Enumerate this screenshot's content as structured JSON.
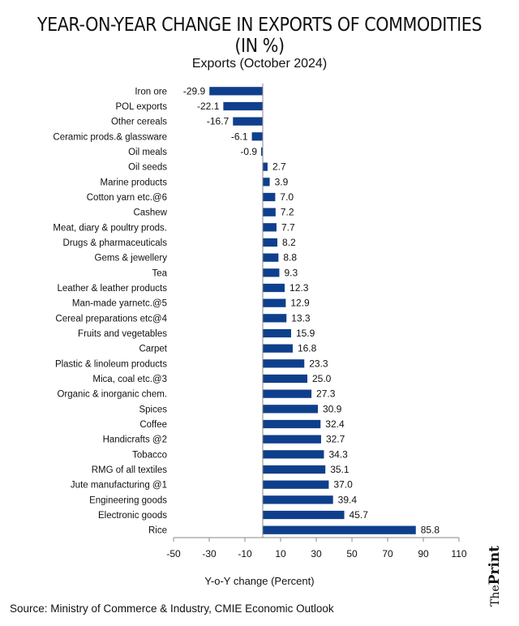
{
  "headline": "YEAR-ON-YEAR CHANGE IN EXPORTS OF COMMODITIES (IN %)",
  "source": "Source: Ministry of Commerce & Industry, CMIE Economic Outlook",
  "brand": {
    "the": "The",
    "name": "Print"
  },
  "colors": {
    "bar": "#0f3f8c",
    "axis": "#888888"
  },
  "chart_data": {
    "type": "bar",
    "orientation": "horizontal",
    "title": "Exports (October 2024)",
    "xlabel": "Y-o-Y change (Percent)",
    "ylabel": "",
    "xlim": [
      -50,
      110
    ],
    "xticks": [
      -50,
      -30,
      -10,
      10,
      30,
      50,
      70,
      90,
      110
    ],
    "grid": false,
    "categories": [
      "Iron ore",
      "POL exports",
      "Other cereals",
      "Ceramic prods.& glassware",
      "Oil meals",
      "Oil seeds",
      "Marine products",
      "Cotton yarn etc.@6",
      "Cashew",
      "Meat, diary & poultry prods.",
      "Drugs & pharmaceuticals",
      "Gems & jewellery",
      "Tea",
      "Leather & leather products",
      "Man-made yarnetc.@5",
      "Cereal preparations etc@4",
      "Fruits and vegetables",
      "Carpet",
      "Plastic & linoleum products",
      "Mica, coal etc.@3",
      "Organic & inorganic chem.",
      "Spices",
      "Coffee",
      "Handicrafts @2",
      "Tobacco",
      "RMG of all textiles",
      "Jute manufacturing @1",
      "Engineering goods",
      "Electronic goods",
      "Rice"
    ],
    "values": [
      -29.9,
      -22.1,
      -16.7,
      -6.1,
      -0.9,
      2.7,
      3.9,
      7.0,
      7.2,
      7.7,
      8.2,
      8.8,
      9.3,
      12.3,
      12.9,
      13.3,
      15.9,
      16.8,
      23.3,
      25.0,
      27.3,
      30.9,
      32.4,
      32.7,
      34.3,
      35.1,
      37.0,
      39.4,
      45.7,
      85.8
    ]
  }
}
